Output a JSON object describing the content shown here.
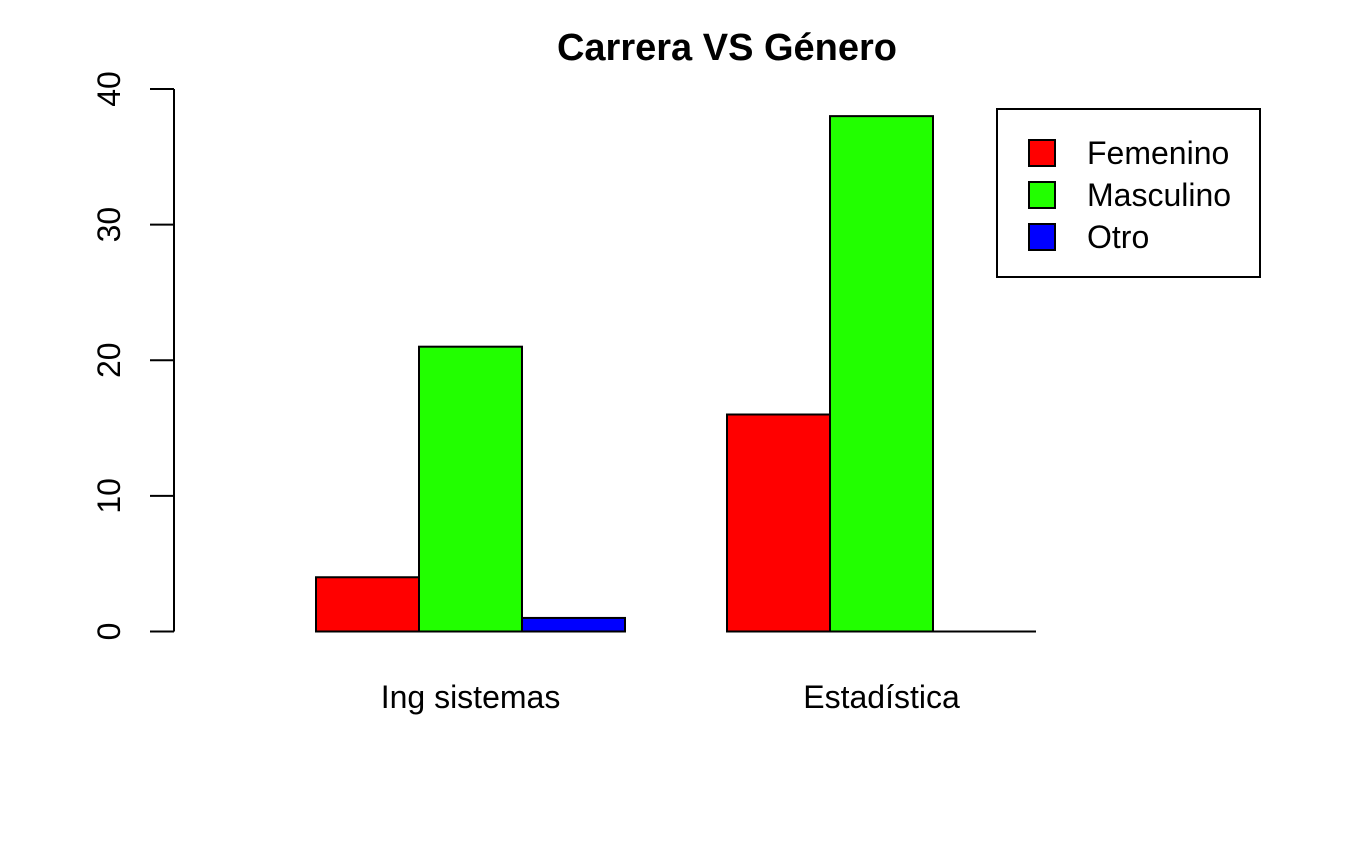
{
  "chart_data": {
    "type": "bar",
    "title": "Carrera VS Género",
    "xlabel": "",
    "ylabel": "",
    "categories": [
      "Ing sistemas",
      "Estadística"
    ],
    "series": [
      {
        "name": "Femenino",
        "color": "#ff0000",
        "values": [
          4,
          16
        ]
      },
      {
        "name": "Masculino",
        "color": "#22ff00",
        "values": [
          21,
          38
        ]
      },
      {
        "name": "Otro",
        "color": "#0000ff",
        "values": [
          1,
          0
        ]
      }
    ],
    "y_ticks": [
      "0",
      "10",
      "20",
      "30",
      "40"
    ],
    "ylim": [
      0,
      40
    ],
    "grid": false,
    "legend_position": "top-right"
  }
}
